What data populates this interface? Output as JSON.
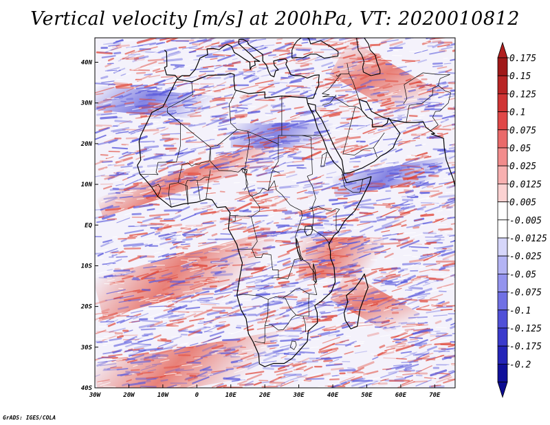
{
  "title": "Vertical velocity [m/s] at 200hPa, VT: 2020010812",
  "credit": "GrADS: IGES/COLA",
  "map": {
    "lon_range": [
      -30,
      76
    ],
    "lat_range": [
      -40,
      46
    ],
    "x_ticks": [
      "30W",
      "20W",
      "10W",
      "0",
      "10E",
      "20E",
      "30E",
      "40E",
      "50E",
      "60E",
      "70E"
    ],
    "y_ticks": [
      "40S",
      "30S",
      "20S",
      "10S",
      "EQ",
      "10N",
      "20N",
      "30N",
      "40N"
    ],
    "field_colors": {
      "background": "#f4f2fb",
      "positive": "#e0483a",
      "negative": "#5a5adc",
      "coast": "#000000"
    }
  },
  "colorbar": {
    "labels": [
      "0.175",
      "0.15",
      "0.125",
      "0.1",
      "0.075",
      "0.05",
      "0.025",
      "0.0125",
      "0.005",
      "-0.005",
      "-0.0125",
      "-0.025",
      "-0.05",
      "-0.075",
      "-0.1",
      "-0.125",
      "-0.175",
      "-0.2"
    ],
    "colors": [
      "#a01818",
      "#b82424",
      "#d03434",
      "#e04848",
      "#ea6a6a",
      "#f28c8c",
      "#f8b0b0",
      "#fcd2d2",
      "#ffffff",
      "#ffffff",
      "#d6d6fa",
      "#b4b4f4",
      "#9494ee",
      "#7070e4",
      "#5050d8",
      "#3a3acc",
      "#2424b8",
      "#10109a"
    ]
  }
}
